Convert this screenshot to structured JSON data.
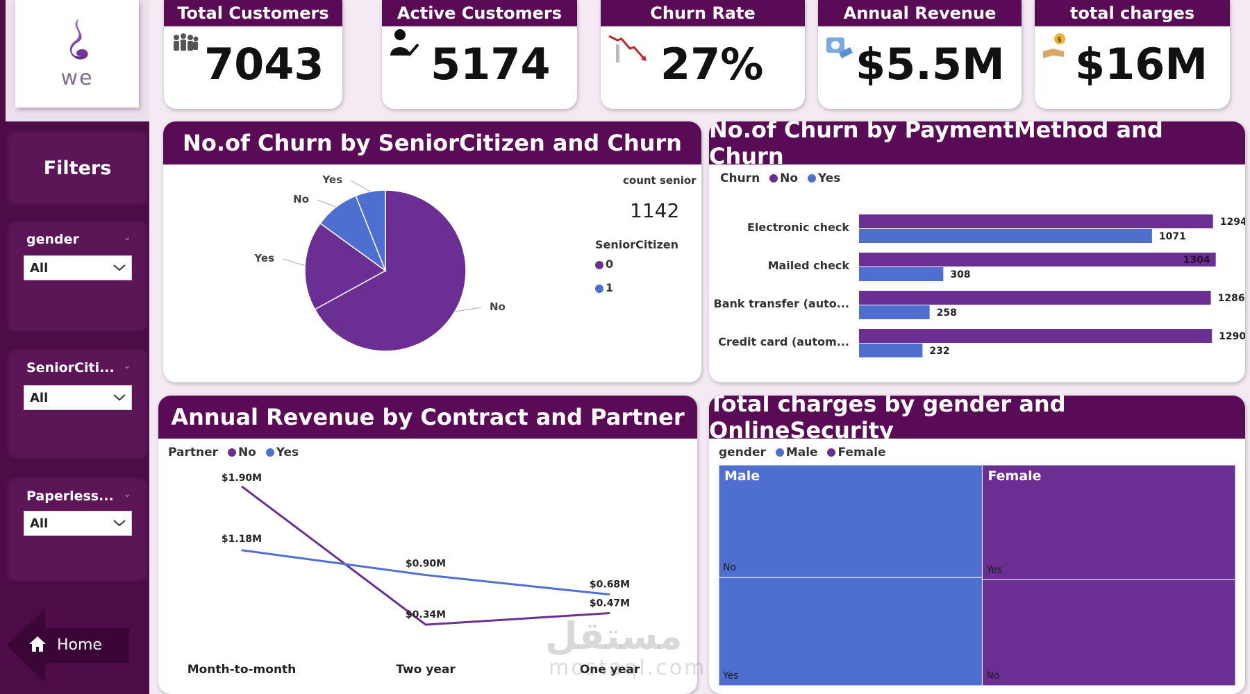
{
  "brand": {
    "logo_text": "we"
  },
  "kpis": [
    {
      "label": "Total Customers",
      "value": "7043",
      "icon": "people-group-icon"
    },
    {
      "label": "Active Customers",
      "value": "5174",
      "icon": "user-check-icon"
    },
    {
      "label": "Churn Rate",
      "value": "27%",
      "icon": "trend-down-icon"
    },
    {
      "label": "Annual Revenue",
      "value": "$5.5M",
      "icon": "revenue-icon"
    },
    {
      "label": "total charges",
      "value": "$16M",
      "icon": "money-hand-icon"
    }
  ],
  "sidebar": {
    "title": "Filters",
    "slicers": [
      {
        "label": "gender",
        "value": "All"
      },
      {
        "label": "SeniorCiti...",
        "value": "All"
      },
      {
        "label": "Paperless...",
        "value": "All"
      }
    ],
    "home_label": "Home"
  },
  "colors": {
    "purple": "#6b2f93",
    "blue": "#4f6fd0",
    "header": "#5a0b56"
  },
  "pie_panel": {
    "title": "No.of Churn by SeniorCitizen and Churn",
    "count_label": "count senior",
    "count_value": "1142",
    "legend_title": "SeniorCitizen",
    "legend": [
      "0",
      "1"
    ]
  },
  "bar_panel": {
    "title": "No.of Churn by PaymentMethod and Churn",
    "legend_title": "Churn",
    "legend": [
      "No",
      "Yes"
    ]
  },
  "line_panel": {
    "title": "Annual Revenue by Contract and Partner",
    "legend_title": "Partner",
    "legend": [
      "No",
      "Yes"
    ]
  },
  "tree_panel": {
    "title": "Total charges by gender and OnlineSecurity",
    "legend_title": "gender",
    "legend": [
      "Male",
      "Female"
    ]
  },
  "chart_data": [
    {
      "type": "pie",
      "title": "No.of Churn by SeniorCitizen and Churn",
      "slices": [
        {
          "senior": "0",
          "churn": "No",
          "label": "No",
          "value": 0.67
        },
        {
          "senior": "0",
          "churn": "Yes",
          "label": "Yes",
          "value": 0.18
        },
        {
          "senior": "1",
          "churn": "No",
          "label": "No",
          "value": 0.09
        },
        {
          "senior": "1",
          "churn": "Yes",
          "label": "Yes",
          "value": 0.06
        }
      ]
    },
    {
      "type": "bar",
      "orientation": "horizontal",
      "title": "No.of Churn by PaymentMethod and Churn",
      "categories": [
        "Electronic check",
        "Mailed check",
        "Bank transfer (auto...",
        "Credit card (autom..."
      ],
      "series": [
        {
          "name": "No",
          "values": [
            1294,
            1304,
            1286,
            1290
          ]
        },
        {
          "name": "Yes",
          "values": [
            1071,
            308,
            258,
            232
          ]
        }
      ],
      "xlim": [
        0,
        1320
      ]
    },
    {
      "type": "line",
      "title": "Annual Revenue by Contract and Partner",
      "categories": [
        "Month-to-month",
        "Two year",
        "One year"
      ],
      "series": [
        {
          "name": "No",
          "values": [
            1.9,
            0.34,
            0.47
          ],
          "labels": [
            "$1.90M",
            "$0.34M",
            "$0.47M"
          ]
        },
        {
          "name": "Yes",
          "values": [
            1.18,
            0.9,
            0.68
          ],
          "labels": [
            "$1.18M",
            "$0.90M",
            "$0.68M"
          ]
        }
      ],
      "ylim": [
        0.2,
        2.0
      ]
    },
    {
      "type": "treemap",
      "title": "Total charges by gender and OnlineSecurity",
      "groups": [
        {
          "name": "Male",
          "value": 0.51,
          "children": [
            {
              "name": "No",
              "value": 0.51
            },
            {
              "name": "Yes",
              "value": 0.49
            }
          ]
        },
        {
          "name": "Female",
          "value": 0.49,
          "children": [
            {
              "name": "Yes",
              "value": 0.52
            },
            {
              "name": "No",
              "value": 0.48
            }
          ]
        }
      ]
    }
  ],
  "watermark": {
    "arabic": "مستقل",
    "latin": "mostaql.com"
  }
}
